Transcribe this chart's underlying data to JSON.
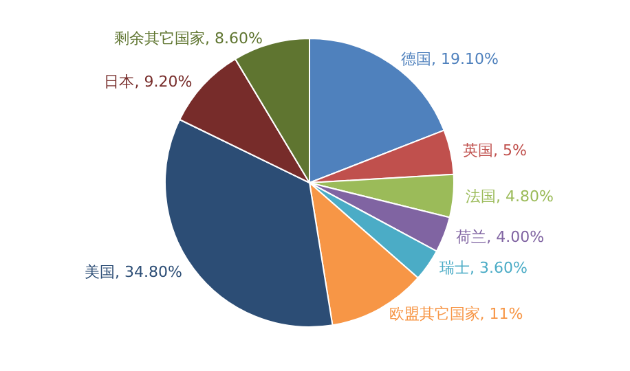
{
  "chart_data": {
    "type": "pie",
    "categories": [
      "德国",
      "英国",
      "法国",
      "荷兰",
      "瑞士",
      "欧盟其它国家",
      "美国",
      "日本",
      "剩余其它国家"
    ],
    "values": [
      19.1,
      5,
      4.8,
      4,
      3.6,
      11,
      34.8,
      9.2,
      8.6
    ],
    "value_labels": [
      "19.10%",
      "5%",
      "4.80%",
      "4.00%",
      "3.60%",
      "11%",
      "34.80%",
      "9.20%",
      "8.60%"
    ],
    "colors": [
      "#4f81bd",
      "#c0504d",
      "#9bbb59",
      "#8064a2",
      "#4bacc6",
      "#f79646",
      "#2c4d75",
      "#772c2a",
      "#5f7530"
    ],
    "legend": false
  }
}
